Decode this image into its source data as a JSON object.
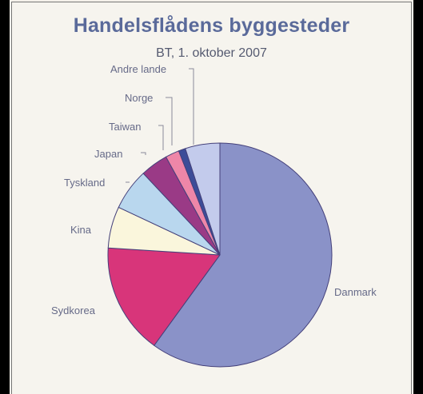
{
  "chart_data": {
    "type": "pie",
    "title": "Handelsflådens byggesteder",
    "subtitle": "BT, 1. oktober 2007",
    "slices": [
      {
        "label": "Danmark",
        "value": 60.0,
        "color": "#8a92c8"
      },
      {
        "label": "Sydkorea",
        "value": 16.0,
        "color": "#d8357a"
      },
      {
        "label": "Kina",
        "value": 6.0,
        "color": "#faf6dc"
      },
      {
        "label": "Tyskland",
        "value": 6.0,
        "color": "#b9d7ee"
      },
      {
        "label": "Japan",
        "value": 4.0,
        "color": "#9a3a86"
      },
      {
        "label": "Taiwan",
        "value": 2.0,
        "color": "#ee86a8"
      },
      {
        "label": "Norge",
        "value": 1.0,
        "color": "#3c4c98"
      },
      {
        "label": "Andre lande",
        "value": 5.0,
        "color": "#c3cbec"
      }
    ]
  }
}
